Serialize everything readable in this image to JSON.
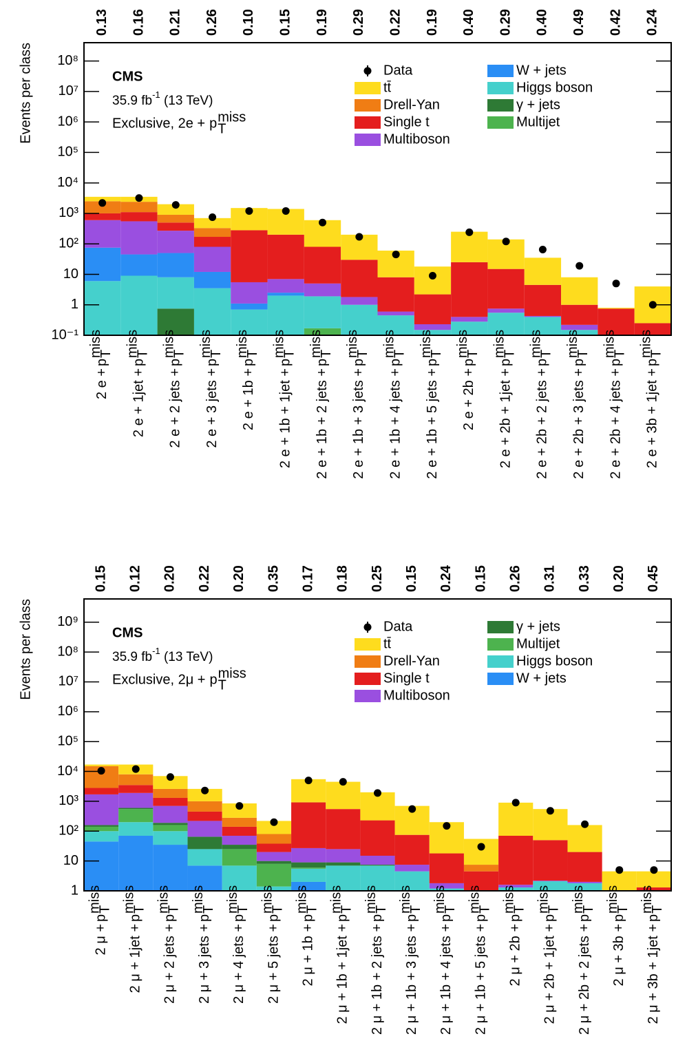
{
  "chart_data": [
    {
      "type": "stacked-histogram",
      "y_label": "Events per class",
      "experiment": "CMS",
      "lumi": [
        "35.9 fb",
        "-1",
        " (13 TeV)"
      ],
      "selection": "Exclusive, 2e +",
      "category_suffix": {
        "base": "p",
        "sub": "T",
        "sup": "miss"
      },
      "log_scale": true,
      "ylim": [
        0.1,
        400000000
      ],
      "yticks": [
        {
          "value": 0.1,
          "label": "10⁻¹"
        },
        1,
        10,
        {
          "value": 100,
          "label": "10²"
        },
        {
          "value": 1000,
          "label": "10³"
        },
        {
          "value": 10000,
          "label": "10⁴"
        },
        {
          "value": 100000,
          "label": "10⁵"
        },
        {
          "value": 1000000,
          "label": "10⁶"
        },
        {
          "value": 10000000,
          "label": "10⁷"
        },
        {
          "value": 100000000,
          "label": "10⁸"
        }
      ],
      "top_labels": [
        "0.13",
        "0.16",
        "0.21",
        "0.26",
        "0.10",
        "0.15",
        "0.19",
        "0.29",
        "0.22",
        "0.19",
        "0.40",
        "0.29",
        "0.40",
        "0.49",
        "0.42",
        "0.24"
      ],
      "categories": [
        "2 e +",
        "2 e + 1jet +",
        "2 e + 2 jets +",
        "2 e + 3 jets +",
        "2 e + 1b +",
        "2 e + 1b + 1jet +",
        "2 e + 1b + 2 jets +",
        "2 e + 1b + 3 jets +",
        "2 e + 1b + 4 jets +",
        "2 e + 1b + 5 jets +",
        "2 e + 2b +",
        "2 e + 2b + 1jet +",
        "2 e + 2b + 2 jets +",
        "2 e + 2b + 3 jets +",
        "2 e + 2b + 4 jets +",
        "2 e + 3b + 1jet +"
      ],
      "data": {
        "name": "Data",
        "color": "#000000",
        "values": [
          2200,
          3200,
          1900,
          750,
          1200,
          1200,
          500,
          170,
          45,
          9,
          240,
          120,
          65,
          19,
          5,
          1
        ]
      },
      "series": [
        {
          "name": "tt̄",
          "color": "#fedc1e",
          "values": [
            1000,
            1100,
            1100,
            370,
            1220,
            1200,
            520,
            170,
            52,
            15.8,
            225,
            125,
            30.5,
            7,
            0.05,
            3.75
          ]
        },
        {
          "name": "Drell-Yan",
          "color": "#f07d14",
          "values": [
            1500,
            1300,
            400,
            160,
            0,
            0,
            0,
            0,
            0,
            0,
            0,
            0,
            0,
            0,
            0,
            0
          ]
        },
        {
          "name": "Single t",
          "color": "#e41e1e",
          "values": [
            400,
            550,
            230,
            90,
            274.5,
            193,
            75,
            28.2,
            7.4,
            1.97,
            24.6,
            14.25,
            4.07,
            0.78,
            0.75,
            0.25
          ]
        },
        {
          "name": "Multiboson",
          "color": "#9a4fe0",
          "values": [
            525,
            505,
            220,
            68,
            4.4,
            4.5,
            3.1,
            0.8,
            0.15,
            0.08,
            0.12,
            0.2,
            0.03,
            0.07,
            0,
            0
          ]
        },
        {
          "name": "W + jets",
          "color": "#2a8ef5",
          "values": [
            69,
            36,
            42,
            8.5,
            0.4,
            0.5,
            0,
            0,
            0,
            0,
            0,
            0,
            0,
            0,
            0,
            0
          ]
        },
        {
          "name": "Higgs boson",
          "color": "#45d0cc",
          "values": [
            6,
            9,
            7.25,
            3.5,
            0.7,
            2,
            1.73,
            1,
            0.45,
            0.15,
            0.28,
            0.55,
            0.4,
            0.15,
            0,
            0
          ]
        },
        {
          "name": "γ + jets",
          "color": "#2e7a35",
          "values": [
            0,
            0,
            0.75,
            0,
            0,
            0,
            0,
            0,
            0,
            0,
            0,
            0,
            0,
            0,
            0,
            0
          ]
        },
        {
          "name": "Multijet",
          "color": "#4db34e",
          "values": [
            0,
            0,
            0,
            0,
            0,
            0,
            0.17,
            0,
            0,
            0,
            0,
            0,
            0,
            0,
            0,
            0
          ]
        }
      ]
    },
    {
      "type": "stacked-histogram",
      "y_label": "Events per class",
      "experiment": "CMS",
      "lumi": [
        "35.9 fb",
        "-1",
        " (13 TeV)"
      ],
      "selection": "Exclusive, 2μ +",
      "category_suffix": {
        "base": "p",
        "sub": "T",
        "sup": "miss"
      },
      "log_scale": true,
      "ylim": [
        1,
        6000000000
      ],
      "yticks": [
        1,
        10,
        {
          "value": 100,
          "label": "10²"
        },
        {
          "value": 1000,
          "label": "10³"
        },
        {
          "value": 10000,
          "label": "10⁴"
        },
        {
          "value": 100000,
          "label": "10⁵"
        },
        {
          "value": 1000000,
          "label": "10⁶"
        },
        {
          "value": 10000000,
          "label": "10⁷"
        },
        {
          "value": 100000000,
          "label": "10⁸"
        },
        {
          "value": 1000000000,
          "label": "10⁹"
        }
      ],
      "top_labels": [
        "0.15",
        "0.12",
        "0.20",
        "0.22",
        "0.20",
        "0.35",
        "0.17",
        "0.18",
        "0.25",
        "0.15",
        "0.24",
        "0.15",
        "0.26",
        "0.31",
        "0.33",
        "0.20",
        "0.45"
      ],
      "categories": [
        "2 μ +",
        "2 μ + 1jet +",
        "2 μ + 2 jets +",
        "2 μ + 3 jets +",
        "2 μ + 4 jets +",
        "2 μ + 5 jets +",
        "2 μ + 1b +",
        "2 μ + 1b + 1jet +",
        "2 μ + 1b + 2 jets +",
        "2 μ + 1b + 3 jets +",
        "2 μ + 1b + 4 jets +",
        "2 μ + 1b + 5 jets +",
        "2 μ + 2b +",
        "2 μ + 2b + 1jet +",
        "2 μ + 2b + 2 jets +",
        "2 μ + 3b +",
        "2 μ + 3b + 1jet +"
      ],
      "data": {
        "name": "Data",
        "color": "#000000",
        "values": [
          10500,
          12000,
          6500,
          2300,
          700,
          200,
          5000,
          4500,
          1900,
          550,
          150,
          30,
          900,
          480,
          170,
          5,
          5
        ]
      },
      "series": [
        {
          "name": "tt̄",
          "color": "#fedc1e",
          "values": [
            2000,
            9000,
            4400,
            1600,
            570,
            140,
            4550,
            3950,
            1770,
            625,
            182,
            47.5,
            830,
            500,
            140,
            3.45,
            3.2
          ]
        },
        {
          "name": "Drell-Yan",
          "color": "#f07d14",
          "values": [
            12200,
            4500,
            1300,
            550,
            140,
            42,
            50,
            0,
            0,
            0,
            0,
            3,
            0,
            0,
            0,
            0,
            0
          ]
        },
        {
          "name": "Single t",
          "color": "#e41e1e",
          "values": [
            1100,
            1600,
            600,
            230,
            70,
            18,
            873,
            525,
            215,
            67.5,
            16.2,
            4.5,
            68.4,
            47.8,
            18,
            1.05,
            1.3
          ]
        },
        {
          "name": "Multiboson",
          "color": "#9a4fe0",
          "values": [
            1540,
            1300,
            510,
            155,
            35,
            10,
            18,
            16,
            7.5,
            3,
            0.6,
            0,
            0.3,
            0.1,
            0.2,
            0,
            0
          ]
        },
        {
          "name": "γ + jets",
          "color": "#2e7a35",
          "values": [
            20,
            50,
            30,
            40,
            10,
            2,
            3,
            2,
            0.5,
            0,
            0,
            0,
            0,
            0,
            0,
            0,
            0
          ]
        },
        {
          "name": "Multijet",
          "color": "#4db34e",
          "values": [
            40,
            350,
            60,
            0,
            18,
            6.6,
            0.5,
            0,
            0,
            0,
            0,
            0,
            0,
            0,
            0,
            0,
            0
          ]
        },
        {
          "name": "Higgs boson",
          "color": "#45d0cc",
          "values": [
            55,
            130,
            65,
            18,
            7,
            1.4,
            3.5,
            7,
            7,
            4.5,
            1.2,
            0,
            1.3,
            2.1,
            1.8,
            0,
            0
          ]
        },
        {
          "name": "W + jets",
          "color": "#2a8ef5",
          "values": [
            45,
            70,
            35,
            7,
            0,
            0,
            2,
            0,
            0,
            0,
            0,
            0,
            0,
            0,
            0,
            0,
            0
          ]
        }
      ]
    }
  ]
}
